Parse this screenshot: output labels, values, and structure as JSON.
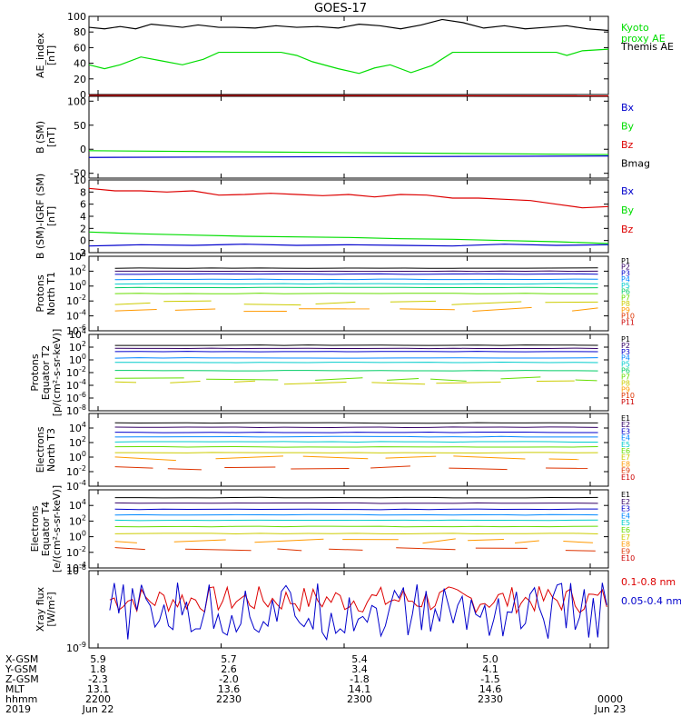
{
  "title": "GOES-17",
  "colors": {
    "black": "#000000",
    "green": "#00dd00",
    "blue": "#0000cc",
    "red": "#dd0000"
  },
  "chart_data": [
    {
      "type": "line",
      "panel": "ae_index",
      "ylabel": "AE_index\n[nT]",
      "ylim": [
        0,
        100
      ],
      "yticks": [
        "0",
        "20",
        "40",
        "60",
        "80",
        "100"
      ],
      "legend": [
        {
          "label": "Kyoto\nproxy AE",
          "color": "#00dd00"
        },
        {
          "label": "Themis AE",
          "color": "#000000"
        }
      ],
      "series": [
        {
          "name": "Kyoto proxy AE",
          "color": "#00dd00",
          "x": [
            0,
            3,
            6,
            10,
            14,
            18,
            22,
            25,
            30,
            33,
            37,
            40,
            43,
            48,
            52,
            55,
            58,
            62,
            66,
            70,
            75,
            80,
            85,
            90,
            92,
            95,
            100
          ],
          "y": [
            38,
            33,
            38,
            48,
            43,
            38,
            45,
            54,
            54,
            54,
            54,
            50,
            42,
            33,
            27,
            34,
            38,
            28,
            37,
            54,
            54,
            54,
            54,
            54,
            50,
            56,
            58
          ]
        },
        {
          "name": "Themis AE",
          "color": "#000000",
          "x": [
            0,
            3,
            6,
            9,
            12,
            15,
            18,
            21,
            25,
            28,
            32,
            36,
            40,
            44,
            48,
            52,
            56,
            60,
            64,
            68,
            72,
            76,
            80,
            84,
            88,
            92,
            96,
            100
          ],
          "y": [
            86,
            84,
            87,
            84,
            90,
            88,
            86,
            89,
            86,
            86,
            85,
            88,
            86,
            87,
            85,
            90,
            88,
            84,
            89,
            96,
            92,
            85,
            88,
            84,
            86,
            88,
            84,
            82
          ]
        }
      ]
    },
    {
      "type": "line",
      "panel": "b_sm",
      "ylabel": "B (SM)\n[nT]",
      "ylim": [
        -60,
        110
      ],
      "yticks": [
        "-50",
        "0",
        "50",
        "100"
      ],
      "legend": [
        {
          "label": "Bx",
          "color": "#0000cc"
        },
        {
          "label": "By",
          "color": "#00dd00"
        },
        {
          "label": "Bz",
          "color": "#dd0000"
        },
        {
          "label": "Bmag",
          "color": "#000000"
        }
      ],
      "series": [
        {
          "name": "Bmag",
          "color": "#000000",
          "x": [
            0,
            100
          ],
          "y": [
            111,
            110
          ]
        },
        {
          "name": "Bz",
          "color": "#dd0000",
          "x": [
            0,
            100
          ],
          "y": [
            112,
            111
          ]
        },
        {
          "name": "By",
          "color": "#00dd00",
          "x": [
            0,
            100
          ],
          "y": [
            -3,
            -11
          ]
        },
        {
          "name": "Bx",
          "color": "#0000cc",
          "x": [
            0,
            100
          ],
          "y": [
            -17,
            -14
          ]
        }
      ]
    },
    {
      "type": "line",
      "panel": "b_minus_igrf",
      "ylabel": "B (SM)-IGRF (SM)\n[nT]",
      "ylim": [
        -2,
        10
      ],
      "yticks": [
        "-2",
        "0",
        "2",
        "4",
        "6",
        "8",
        "10"
      ],
      "legend": [
        {
          "label": "Bx",
          "color": "#0000cc"
        },
        {
          "label": "By",
          "color": "#00dd00"
        },
        {
          "label": "Bz",
          "color": "#dd0000"
        }
      ],
      "series": [
        {
          "name": "Bz",
          "color": "#dd0000",
          "x": [
            0,
            5,
            10,
            15,
            20,
            25,
            30,
            35,
            40,
            45,
            50,
            55,
            60,
            65,
            70,
            75,
            80,
            85,
            90,
            95,
            100
          ],
          "y": [
            8.6,
            8.2,
            8.2,
            8.0,
            8.2,
            7.5,
            7.6,
            7.8,
            7.6,
            7.4,
            7.6,
            7.2,
            7.6,
            7.5,
            7.0,
            7.0,
            6.8,
            6.6,
            6.0,
            5.4,
            5.6
          ]
        },
        {
          "name": "By",
          "color": "#00dd00",
          "x": [
            0,
            10,
            20,
            30,
            40,
            50,
            60,
            70,
            80,
            90,
            100
          ],
          "y": [
            1.4,
            1.1,
            0.9,
            0.7,
            0.6,
            0.5,
            0.3,
            0.2,
            0.0,
            -0.2,
            -0.5
          ]
        },
        {
          "name": "Bx",
          "color": "#0000cc",
          "x": [
            0,
            10,
            20,
            30,
            40,
            50,
            60,
            70,
            80,
            90,
            100
          ],
          "y": [
            -0.9,
            -0.7,
            -0.8,
            -0.6,
            -0.8,
            -0.7,
            -0.8,
            -0.9,
            -0.6,
            -0.8,
            -0.7
          ]
        }
      ]
    },
    {
      "type": "line",
      "panel": "protons_north",
      "ylabel": "Protons\nNorth T1",
      "log": true,
      "ylim": [
        -6,
        4
      ],
      "yticks": [
        "10^-6",
        "10^-4",
        "10^-2",
        "10^0",
        "10^2",
        "10^4"
      ],
      "legend": [
        {
          "label": "P1",
          "color": "#000000"
        },
        {
          "label": "P2",
          "color": "#330066"
        },
        {
          "label": "P3",
          "color": "#0000cc"
        },
        {
          "label": "P4",
          "color": "#0088ff"
        },
        {
          "label": "P5",
          "color": "#00cccc"
        },
        {
          "label": "P6",
          "color": "#00cc66"
        },
        {
          "label": "P7",
          "color": "#66dd00"
        },
        {
          "label": "P8",
          "color": "#cccc00"
        },
        {
          "label": "P9",
          "color": "#ff9900"
        },
        {
          "label": "P10",
          "color": "#dd3300"
        },
        {
          "label": "P11",
          "color": "#cc0000"
        }
      ],
      "levels": [
        {
          "name": "P1",
          "color": "#000000",
          "y": 2.4
        },
        {
          "name": "P2",
          "color": "#330066",
          "y": 2.0
        },
        {
          "name": "P3",
          "color": "#0000cc",
          "y": 1.6
        },
        {
          "name": "P4",
          "color": "#0088ff",
          "y": 0.9
        },
        {
          "name": "P5",
          "color": "#00cccc",
          "y": 0.3
        },
        {
          "name": "P6",
          "color": "#00cc66",
          "y": -0.2
        },
        {
          "name": "P7",
          "color": "#66dd00",
          "y": -1.0
        },
        {
          "name": "P8",
          "color": "#cccc00",
          "y": -2.3
        },
        {
          "name": "P9",
          "color": "#ff9900",
          "y": -3.2
        }
      ]
    },
    {
      "type": "line",
      "panel": "protons_equator",
      "ylabel": "Protons\nEquator T2\n[p/(cm²-s-sr-keV)]",
      "log": true,
      "ylim": [
        -8,
        4
      ],
      "yticks": [
        "10^-8",
        "10^-6",
        "10^-4",
        "10^-2",
        "10^0",
        "10^2",
        "10^4"
      ],
      "legend": [
        {
          "label": "P1",
          "color": "#000000"
        },
        {
          "label": "P2",
          "color": "#330066"
        },
        {
          "label": "P3",
          "color": "#0000cc"
        },
        {
          "label": "P4",
          "color": "#0088ff"
        },
        {
          "label": "P5",
          "color": "#00cccc"
        },
        {
          "label": "P6",
          "color": "#00cc66"
        },
        {
          "label": "P7",
          "color": "#66dd00"
        },
        {
          "label": "P8",
          "color": "#cccc00"
        },
        {
          "label": "P9",
          "color": "#ff9900"
        },
        {
          "label": "P10",
          "color": "#dd3300"
        },
        {
          "label": "P11",
          "color": "#cc0000"
        }
      ],
      "levels": [
        {
          "name": "P1",
          "color": "#000000",
          "y": 2.3
        },
        {
          "name": "P2",
          "color": "#330066",
          "y": 1.8
        },
        {
          "name": "P3",
          "color": "#0000cc",
          "y": 1.3
        },
        {
          "name": "P4",
          "color": "#0088ff",
          "y": 0.3
        },
        {
          "name": "P5",
          "color": "#00cccc",
          "y": -0.4
        },
        {
          "name": "P6",
          "color": "#00cc66",
          "y": -1.7
        },
        {
          "name": "P7",
          "color": "#66dd00",
          "y": -3.0
        },
        {
          "name": "P8",
          "color": "#cccc00",
          "y": -3.6
        }
      ]
    },
    {
      "type": "line",
      "panel": "electrons_north",
      "ylabel": "Electrons\nNorth T3",
      "log": true,
      "ylim": [
        -4,
        6
      ],
      "yticks": [
        "10^-4",
        "10^-2",
        "10^0",
        "10^2",
        "10^4"
      ],
      "legend": [
        {
          "label": "E1",
          "color": "#000000"
        },
        {
          "label": "E2",
          "color": "#330066"
        },
        {
          "label": "E3",
          "color": "#0000cc"
        },
        {
          "label": "E4",
          "color": "#0088ff"
        },
        {
          "label": "E5",
          "color": "#00cccc"
        },
        {
          "label": "E6",
          "color": "#66dd00"
        },
        {
          "label": "E7",
          "color": "#cccc00"
        },
        {
          "label": "E8",
          "color": "#ff9900"
        },
        {
          "label": "E9",
          "color": "#dd3300"
        },
        {
          "label": "E10",
          "color": "#cc0000"
        }
      ],
      "levels": [
        {
          "name": "E1",
          "color": "#000000",
          "y": 4.7
        },
        {
          "name": "E2",
          "color": "#330066",
          "y": 4.1
        },
        {
          "name": "E3",
          "color": "#0000cc",
          "y": 3.4
        },
        {
          "name": "E4",
          "color": "#0088ff",
          "y": 2.8
        },
        {
          "name": "E5",
          "color": "#00cccc",
          "y": 2.1
        },
        {
          "name": "E6",
          "color": "#66dd00",
          "y": 1.4
        },
        {
          "name": "E7",
          "color": "#cccc00",
          "y": 0.6
        },
        {
          "name": "E8",
          "color": "#ff9900",
          "y": -0.1
        },
        {
          "name": "E9",
          "color": "#dd3300",
          "y": -1.4
        }
      ]
    },
    {
      "type": "line",
      "panel": "electrons_equator",
      "ylabel": "Electrons\nEquator T4\n[e/(cm²-s-sr-keV)]",
      "log": true,
      "ylim": [
        -4,
        6
      ],
      "yticks": [
        "10^-4",
        "10^-2",
        "10^0",
        "10^2",
        "10^4"
      ],
      "legend": [
        {
          "label": "E1",
          "color": "#000000"
        },
        {
          "label": "E2",
          "color": "#330066"
        },
        {
          "label": "E3",
          "color": "#0000cc"
        },
        {
          "label": "E4",
          "color": "#0088ff"
        },
        {
          "label": "E5",
          "color": "#00cccc"
        },
        {
          "label": "E6",
          "color": "#66dd00"
        },
        {
          "label": "E7",
          "color": "#cccc00"
        },
        {
          "label": "E8",
          "color": "#ff9900"
        },
        {
          "label": "E9",
          "color": "#dd3300"
        },
        {
          "label": "E10",
          "color": "#cc0000"
        }
      ],
      "levels": [
        {
          "name": "E1",
          "color": "#000000",
          "y": 5.0
        },
        {
          "name": "E2",
          "color": "#330066",
          "y": 4.3
        },
        {
          "name": "E3",
          "color": "#0000cc",
          "y": 3.5
        },
        {
          "name": "E4",
          "color": "#0088ff",
          "y": 2.8
        },
        {
          "name": "E5",
          "color": "#00cccc",
          "y": 2.1
        },
        {
          "name": "E6",
          "color": "#66dd00",
          "y": 1.3
        },
        {
          "name": "E7",
          "color": "#cccc00",
          "y": 0.4
        },
        {
          "name": "E8",
          "color": "#ff9900",
          "y": -0.6
        },
        {
          "name": "E9",
          "color": "#dd3300",
          "y": -1.6
        }
      ]
    },
    {
      "type": "line",
      "panel": "xray_flux",
      "ylabel": "Xray flux\n[W/m²]",
      "log": true,
      "ylim": [
        -9,
        -8
      ],
      "yticks": [
        "10^-9",
        "10^-8"
      ],
      "legend": [
        {
          "label": "0.1-0.8 nm",
          "color": "#dd0000"
        },
        {
          "label": "0.05-0.4 nm",
          "color": "#0000cc"
        }
      ],
      "series": [
        {
          "name": "0.1-0.8 nm",
          "color": "#dd0000"
        },
        {
          "name": "0.05-0.4 nm",
          "color": "#0000cc"
        }
      ]
    }
  ],
  "footer": {
    "row_labels": [
      "X-GSM",
      "Y-GSM",
      "Z-GSM",
      "MLT",
      "hhmm",
      "2019"
    ],
    "columns": [
      {
        "values": [
          "5.9",
          "1.8",
          "-2.3",
          "13.1",
          "2200",
          "Jun 22"
        ]
      },
      {
        "values": [
          "5.7",
          "2.6",
          "-2.0",
          "13.6",
          "2230",
          ""
        ]
      },
      {
        "values": [
          "5.4",
          "3.4",
          "-1.8",
          "14.1",
          "2300",
          ""
        ]
      },
      {
        "values": [
          "5.0",
          "4.1",
          "-1.5",
          "14.6",
          "2330",
          ""
        ]
      },
      {
        "values": [
          "",
          "",
          "",
          "",
          "0000",
          "Jun 23"
        ]
      }
    ]
  }
}
